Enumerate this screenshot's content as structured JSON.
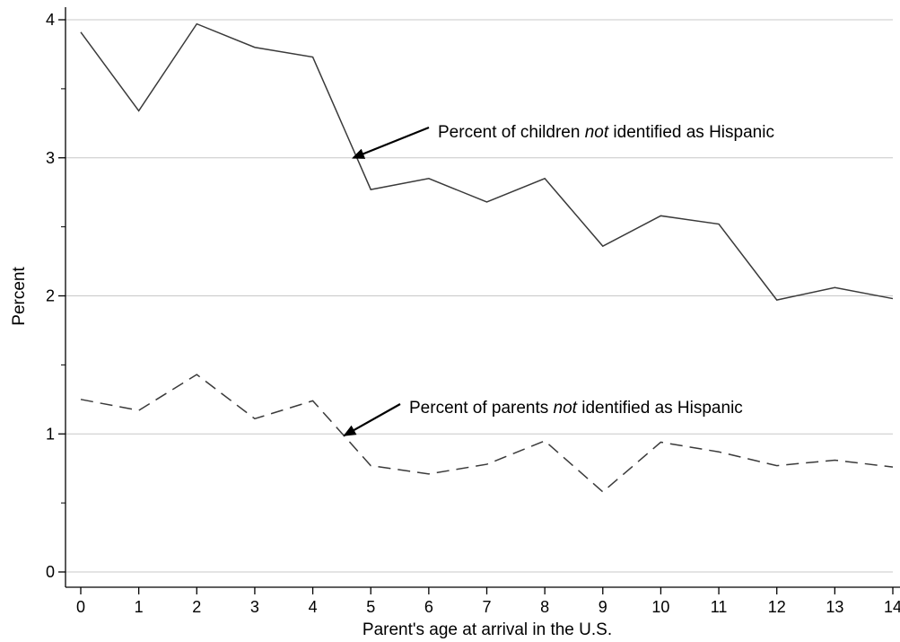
{
  "chart_data": {
    "type": "line",
    "title": "",
    "xlabel": "Parent's age at arrival in the U.S.",
    "ylabel": "Percent",
    "xlim": [
      0,
      14
    ],
    "ylim": [
      0,
      4
    ],
    "x": [
      0,
      1,
      2,
      3,
      4,
      5,
      6,
      7,
      8,
      9,
      10,
      11,
      12,
      13,
      14
    ],
    "x_ticks": [
      "0",
      "1",
      "2",
      "3",
      "4",
      "5",
      "6",
      "7",
      "8",
      "9",
      "10",
      "11",
      "12",
      "13",
      "14"
    ],
    "y_ticks": [
      "0",
      "1",
      "2",
      "3",
      "4"
    ],
    "grid": "horizontal",
    "series": [
      {
        "style": "solid",
        "color": "#3a3a3a",
        "values": [
          3.91,
          3.34,
          3.97,
          3.8,
          3.73,
          2.77,
          2.85,
          2.68,
          2.85,
          2.36,
          2.58,
          2.52,
          1.97,
          2.06,
          1.98
        ]
      },
      {
        "style": "dashed",
        "color": "#3a3a3a",
        "values": [
          1.25,
          1.17,
          1.43,
          1.11,
          1.24,
          0.77,
          0.71,
          0.78,
          0.95,
          0.58,
          0.94,
          0.87,
          0.77,
          0.81,
          0.76
        ]
      }
    ],
    "annotations": [
      {
        "pre": "Percent of children ",
        "em": "not",
        "post": " identified as Hispanic",
        "arrow_to": [
          4.7,
          3.0
        ]
      },
      {
        "pre": "Percent of parents ",
        "em": "not",
        "post": " identified as Hispanic",
        "arrow_to": [
          4.55,
          0.99
        ]
      }
    ],
    "colors": {
      "axis": "#000000",
      "grid": "#c8c8c8",
      "line": "#3a3a3a"
    }
  }
}
